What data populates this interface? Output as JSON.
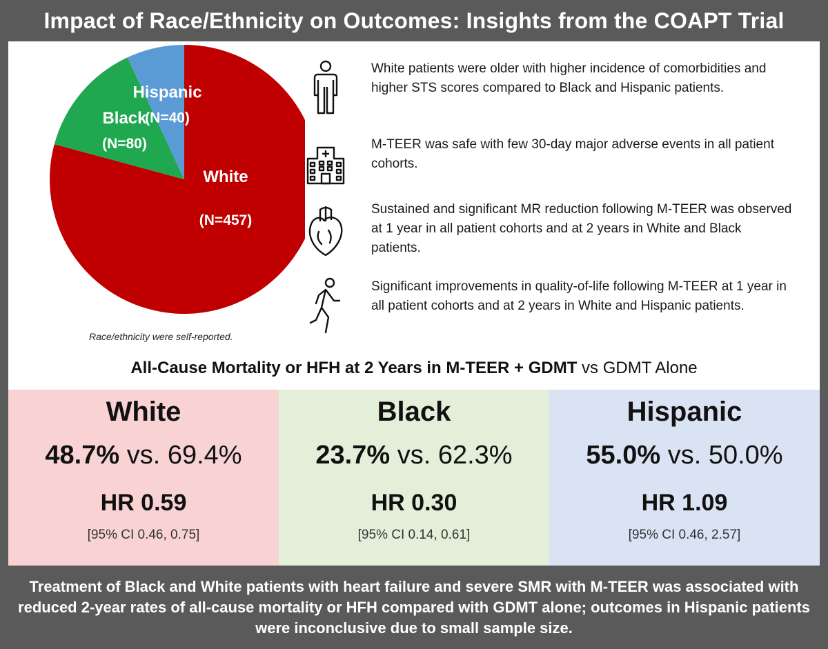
{
  "title": "Impact of Race/Ethnicity on Outcomes: Insights from the COAPT Trial",
  "chart_data": {
    "type": "pie",
    "title": "",
    "slices": [
      {
        "label": "White",
        "count_label": "(N=457)",
        "value": 457,
        "color": "#c00000"
      },
      {
        "label": "Black",
        "count_label": "(N=80)",
        "value": 80,
        "color": "#1fa84f"
      },
      {
        "label": "Hispanic",
        "count_label": "(N=40)",
        "value": 40,
        "color": "#5b9bd5"
      }
    ],
    "note": "Race/ethnicity were self-reported."
  },
  "findings": [
    {
      "icon": "person-icon",
      "text": "White patients were older with higher incidence of comorbidities and higher STS scores compared to Black and Hispanic patients."
    },
    {
      "icon": "hospital-icon",
      "text": "M-TEER was safe with few 30-day major adverse events in all patient cohorts."
    },
    {
      "icon": "heart-icon",
      "text": "Sustained and significant MR reduction following M-TEER was observed at 1 year in all patient cohorts and at 2 years in White and Black patients."
    },
    {
      "icon": "walking-person-icon",
      "text": "Significant improvements in quality-of-life following M-TEER at 1 year in all patient cohorts and at 2 years in White and Hispanic patients."
    }
  ],
  "outcomes": {
    "heading_bold": "All-Cause Mortality or HFH at 2 Years in M-TEER + GDMT",
    "heading_rest": " vs GDMT Alone",
    "groups": [
      {
        "name": "White",
        "rate_teer": "48.7%",
        "vs": " vs. ",
        "rate_gdmt": "69.4%",
        "hr": "HR 0.59",
        "ci": "[95% CI 0.46, 0.75]",
        "color": "#f9d3d3"
      },
      {
        "name": "Black",
        "rate_teer": "23.7%",
        "vs": " vs. ",
        "rate_gdmt": "62.3%",
        "hr": "HR 0.30",
        "ci": "[95% CI 0.14, 0.61]",
        "color": "#e3efd9"
      },
      {
        "name": "Hispanic",
        "rate_teer": "55.0%",
        "vs": " vs. ",
        "rate_gdmt": "50.0%",
        "hr": "HR 1.09",
        "ci": "[95% CI 0.46, 2.57]",
        "color": "#dae3f3"
      }
    ]
  },
  "conclusion": "Treatment of Black and White patients with heart failure and severe SMR with M-TEER was associated with reduced 2-year rates of all-cause mortality or HFH compared with GDMT alone; outcomes in Hispanic patients were inconclusive due to small sample size."
}
